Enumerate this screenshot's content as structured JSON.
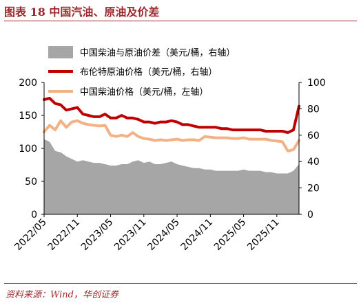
{
  "header": {
    "title": "图表 18 中国汽油、原油及价差"
  },
  "footer": {
    "source": "资料来源：Wind，华创证券"
  },
  "colors": {
    "spread": "#A6A6A6",
    "brent": "#C00000",
    "china_diesel": "#F4B183",
    "title": "#9B2A2E"
  },
  "chart_data": {
    "type": "line",
    "title": "",
    "x_tick_labels": [
      "2022/05",
      "2022/11",
      "2023/05",
      "2023/11",
      "2024/05",
      "2024/11",
      "2025/05",
      "2025/11"
    ],
    "x_range": [
      "2022/05",
      "2026/03"
    ],
    "left_axis": {
      "range": [
        0,
        200
      ],
      "ticks": [
        "0",
        "50",
        "100",
        "150",
        "200"
      ]
    },
    "right_axis": {
      "range": [
        0,
        100
      ],
      "ticks": [
        "0",
        "20",
        "40",
        "60",
        "80",
        "100"
      ]
    },
    "grid": false,
    "legend_position": "top",
    "series": [
      {
        "name": "中国柴油与原油价差（美元/桶，右轴）",
        "style": "area",
        "axis": "right",
        "points": [
          [
            "2022/05",
            57
          ],
          [
            "2022/06",
            55
          ],
          [
            "2022/07",
            48
          ],
          [
            "2022/08",
            47
          ],
          [
            "2022/09",
            44
          ],
          [
            "2022/10",
            42
          ],
          [
            "2022/11",
            40
          ],
          [
            "2022/12",
            41
          ],
          [
            "2023/01",
            40
          ],
          [
            "2023/02",
            39
          ],
          [
            "2023/03",
            39
          ],
          [
            "2023/04",
            38
          ],
          [
            "2023/05",
            37
          ],
          [
            "2023/06",
            37
          ],
          [
            "2023/07",
            38
          ],
          [
            "2023/08",
            38
          ],
          [
            "2023/09",
            40
          ],
          [
            "2023/10",
            41
          ],
          [
            "2023/11",
            39
          ],
          [
            "2023/12",
            40
          ],
          [
            "2024/01",
            38
          ],
          [
            "2024/02",
            38
          ],
          [
            "2024/03",
            39
          ],
          [
            "2024/04",
            40
          ],
          [
            "2024/05",
            38
          ],
          [
            "2024/06",
            37
          ],
          [
            "2024/07",
            36
          ],
          [
            "2024/08",
            35
          ],
          [
            "2024/09",
            35
          ],
          [
            "2024/10",
            34
          ],
          [
            "2024/11",
            34
          ],
          [
            "2024/12",
            33
          ],
          [
            "2025/01",
            33
          ],
          [
            "2025/02",
            33
          ],
          [
            "2025/03",
            33
          ],
          [
            "2025/04",
            33
          ],
          [
            "2025/05",
            34
          ],
          [
            "2025/06",
            33
          ],
          [
            "2025/07",
            33
          ],
          [
            "2025/08",
            33
          ],
          [
            "2025/09",
            32
          ],
          [
            "2025/10",
            32
          ],
          [
            "2025/11",
            31
          ],
          [
            "2025/12",
            31
          ],
          [
            "2026/01",
            31
          ],
          [
            "2026/02",
            33
          ],
          [
            "2026/03",
            38
          ]
        ]
      },
      {
        "name": "布伦特原油价格（美元/桶，右轴）",
        "style": "line",
        "axis": "right",
        "points": [
          [
            "2022/05",
            87
          ],
          [
            "2022/06",
            88
          ],
          [
            "2022/07",
            84
          ],
          [
            "2022/08",
            83
          ],
          [
            "2022/09",
            79
          ],
          [
            "2022/10",
            80
          ],
          [
            "2022/11",
            81
          ],
          [
            "2022/12",
            76
          ],
          [
            "2023/01",
            75
          ],
          [
            "2023/02",
            74
          ],
          [
            "2023/03",
            74
          ],
          [
            "2023/04",
            76
          ],
          [
            "2023/05",
            73
          ],
          [
            "2023/06",
            73
          ],
          [
            "2023/07",
            75
          ],
          [
            "2023/08",
            73
          ],
          [
            "2023/09",
            73
          ],
          [
            "2023/10",
            72
          ],
          [
            "2023/11",
            70
          ],
          [
            "2023/12",
            70
          ],
          [
            "2024/01",
            69
          ],
          [
            "2024/02",
            70
          ],
          [
            "2024/03",
            70
          ],
          [
            "2024/04",
            71
          ],
          [
            "2024/05",
            70
          ],
          [
            "2024/06",
            68
          ],
          [
            "2024/07",
            68
          ],
          [
            "2024/08",
            67
          ],
          [
            "2024/09",
            66
          ],
          [
            "2024/10",
            66
          ],
          [
            "2024/11",
            66
          ],
          [
            "2024/12",
            66
          ],
          [
            "2025/01",
            65
          ],
          [
            "2025/02",
            65
          ],
          [
            "2025/03",
            64
          ],
          [
            "2025/04",
            64
          ],
          [
            "2025/05",
            64
          ],
          [
            "2025/06",
            64
          ],
          [
            "2025/07",
            64
          ],
          [
            "2025/08",
            64
          ],
          [
            "2025/09",
            63
          ],
          [
            "2025/10",
            63
          ],
          [
            "2025/11",
            63
          ],
          [
            "2025/12",
            63
          ],
          [
            "2026/01",
            62
          ],
          [
            "2026/02",
            64
          ],
          [
            "2026/03",
            82
          ]
        ]
      },
      {
        "name": "中国柴油价格（美元/桶，左轴）",
        "style": "line",
        "axis": "left",
        "points": [
          [
            "2022/05",
            125
          ],
          [
            "2022/06",
            135
          ],
          [
            "2022/07",
            128
          ],
          [
            "2022/08",
            142
          ],
          [
            "2022/09",
            132
          ],
          [
            "2022/10",
            140
          ],
          [
            "2022/11",
            142
          ],
          [
            "2022/12",
            138
          ],
          [
            "2023/01",
            136
          ],
          [
            "2023/02",
            135
          ],
          [
            "2023/03",
            134
          ],
          [
            "2023/04",
            135
          ],
          [
            "2023/05",
            120
          ],
          [
            "2023/06",
            118
          ],
          [
            "2023/07",
            120
          ],
          [
            "2023/08",
            118
          ],
          [
            "2023/09",
            124
          ],
          [
            "2023/10",
            118
          ],
          [
            "2023/11",
            115
          ],
          [
            "2023/12",
            114
          ],
          [
            "2024/01",
            112
          ],
          [
            "2024/02",
            113
          ],
          [
            "2024/03",
            112
          ],
          [
            "2024/04",
            113
          ],
          [
            "2024/05",
            114
          ],
          [
            "2024/06",
            112
          ],
          [
            "2024/07",
            113
          ],
          [
            "2024/08",
            113
          ],
          [
            "2024/09",
            112
          ],
          [
            "2024/10",
            118
          ],
          [
            "2024/11",
            117
          ],
          [
            "2024/12",
            116
          ],
          [
            "2025/01",
            116
          ],
          [
            "2025/02",
            116
          ],
          [
            "2025/03",
            115
          ],
          [
            "2025/04",
            115
          ],
          [
            "2025/05",
            116
          ],
          [
            "2025/06",
            114
          ],
          [
            "2025/07",
            114
          ],
          [
            "2025/08",
            114
          ],
          [
            "2025/09",
            114
          ],
          [
            "2025/10",
            112
          ],
          [
            "2025/11",
            111
          ],
          [
            "2025/12",
            110
          ],
          [
            "2026/01",
            96
          ],
          [
            "2026/02",
            98
          ],
          [
            "2026/03",
            112
          ]
        ]
      }
    ]
  }
}
